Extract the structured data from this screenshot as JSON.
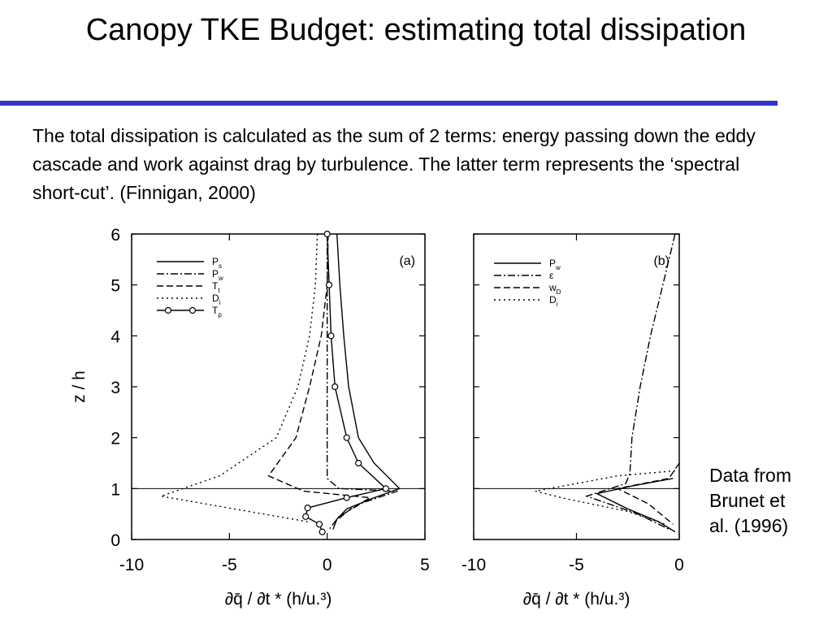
{
  "slide": {
    "title": "Canopy TKE Budget: estimating total dissipation",
    "description": "The total dissipation is calculated as the sum of 2 terms: energy passing down the eddy cascade and work against drag by turbulence.  The latter term represents the ‘spectral short-cut’.  (Finnigan, 2000)",
    "note": "Data from\nBrunet et\nal. (1996)",
    "accent_color": "#3333cc"
  },
  "chart_data": [
    {
      "type": "line",
      "panel_label": "(a)",
      "ylabel": "z / h",
      "xlabel": "∂q̄ / ∂t * (h/u.³)",
      "xlim": [
        -10,
        5
      ],
      "ylim": [
        0,
        6
      ],
      "xticks": [
        "-10",
        "-5",
        "0",
        "5"
      ],
      "yticks": [
        "0",
        "1",
        "2",
        "3",
        "4",
        "5",
        "6"
      ],
      "canopy_height_line": 1,
      "grid": false,
      "legend_position": "top-left",
      "series": [
        {
          "name": "Ps",
          "style": "solid",
          "points": [
            [
              0.5,
              6
            ],
            [
              0.65,
              5
            ],
            [
              0.85,
              4
            ],
            [
              1.1,
              3
            ],
            [
              1.6,
              2
            ],
            [
              2.4,
              1.5
            ],
            [
              3.7,
              1
            ],
            [
              2.4,
              0.82
            ],
            [
              1.0,
              0.6
            ],
            [
              0.5,
              0.4
            ],
            [
              0.3,
              0.2
            ]
          ]
        },
        {
          "name": "Pw",
          "style": "dashdot",
          "points": [
            [
              0,
              6
            ],
            [
              0,
              4
            ],
            [
              0,
              2
            ],
            [
              0,
              1.2
            ],
            [
              0.6,
              1.0
            ],
            [
              3.6,
              0.95
            ],
            [
              1.8,
              0.72
            ],
            [
              0.6,
              0.45
            ],
            [
              0.1,
              0.2
            ]
          ]
        },
        {
          "name": "Tt",
          "style": "dashed",
          "points": [
            [
              0.05,
              6
            ],
            [
              0,
              5
            ],
            [
              -0.3,
              4
            ],
            [
              -0.9,
              3
            ],
            [
              -1.6,
              2
            ],
            [
              -3.0,
              1.25
            ],
            [
              -1.2,
              0.95
            ],
            [
              2.2,
              0.82
            ],
            [
              1.2,
              0.6
            ],
            [
              0.4,
              0.35
            ]
          ]
        },
        {
          "name": "Di",
          "style": "dotted",
          "points": [
            [
              -0.5,
              6
            ],
            [
              -0.6,
              5
            ],
            [
              -0.9,
              4
            ],
            [
              -1.5,
              3
            ],
            [
              -2.6,
              2
            ],
            [
              -5.5,
              1.25
            ],
            [
              -8.5,
              0.85
            ],
            [
              -4.0,
              0.55
            ],
            [
              -1.0,
              0.35
            ]
          ]
        },
        {
          "name": "Tp",
          "style": "solid-circles",
          "points": [
            [
              0,
              6
            ],
            [
              0.1,
              5
            ],
            [
              0.2,
              4
            ],
            [
              0.4,
              3
            ],
            [
              1.0,
              2
            ],
            [
              1.6,
              1.5
            ],
            [
              3.0,
              1.0
            ],
            [
              1.0,
              0.82
            ],
            [
              -1.0,
              0.62
            ],
            [
              -1.1,
              0.45
            ],
            [
              -0.4,
              0.3
            ],
            [
              -0.25,
              0.15
            ]
          ]
        }
      ]
    },
    {
      "type": "line",
      "panel_label": "(b)",
      "ylabel": "",
      "xlabel": "∂q̄ / ∂t * (h/u.³)",
      "xlim": [
        -10,
        0
      ],
      "ylim": [
        0,
        6
      ],
      "xticks": [
        "-10",
        "-5",
        "0"
      ],
      "canopy_height_line": 1,
      "grid": false,
      "legend_position": "top-left",
      "series": [
        {
          "name": "Pw",
          "style": "solid",
          "points": [
            [
              -0.3,
              1.2
            ],
            [
              -2.3,
              1.05
            ],
            [
              -4.0,
              0.9
            ],
            [
              -2.5,
              0.6
            ],
            [
              -1.0,
              0.35
            ],
            [
              -0.2,
              0.15
            ]
          ]
        },
        {
          "name": "ε",
          "style": "dashdot",
          "points": [
            [
              -0.2,
              6
            ],
            [
              -0.8,
              5
            ],
            [
              -1.4,
              4
            ],
            [
              -1.9,
              3
            ],
            [
              -2.3,
              2
            ],
            [
              -2.4,
              1.3
            ],
            [
              -2.6,
              1.1
            ],
            [
              -4.5,
              0.85
            ],
            [
              -2.0,
              0.5
            ],
            [
              -0.5,
              0.2
            ]
          ]
        },
        {
          "name": "wD",
          "style": "dashed",
          "points": [
            [
              0,
              1.5
            ],
            [
              -0.5,
              1.2
            ],
            [
              -3.0,
              1.0
            ],
            [
              -1.5,
              0.7
            ],
            [
              -0.3,
              0.3
            ]
          ]
        },
        {
          "name": "Di",
          "style": "dotted",
          "points": [
            [
              -0.2,
              1.35
            ],
            [
              -3.0,
              1.25
            ],
            [
              -7.0,
              0.95
            ],
            [
              -5.5,
              0.8
            ],
            [
              -2.5,
              0.55
            ],
            [
              -0.7,
              0.3
            ]
          ]
        }
      ]
    }
  ]
}
